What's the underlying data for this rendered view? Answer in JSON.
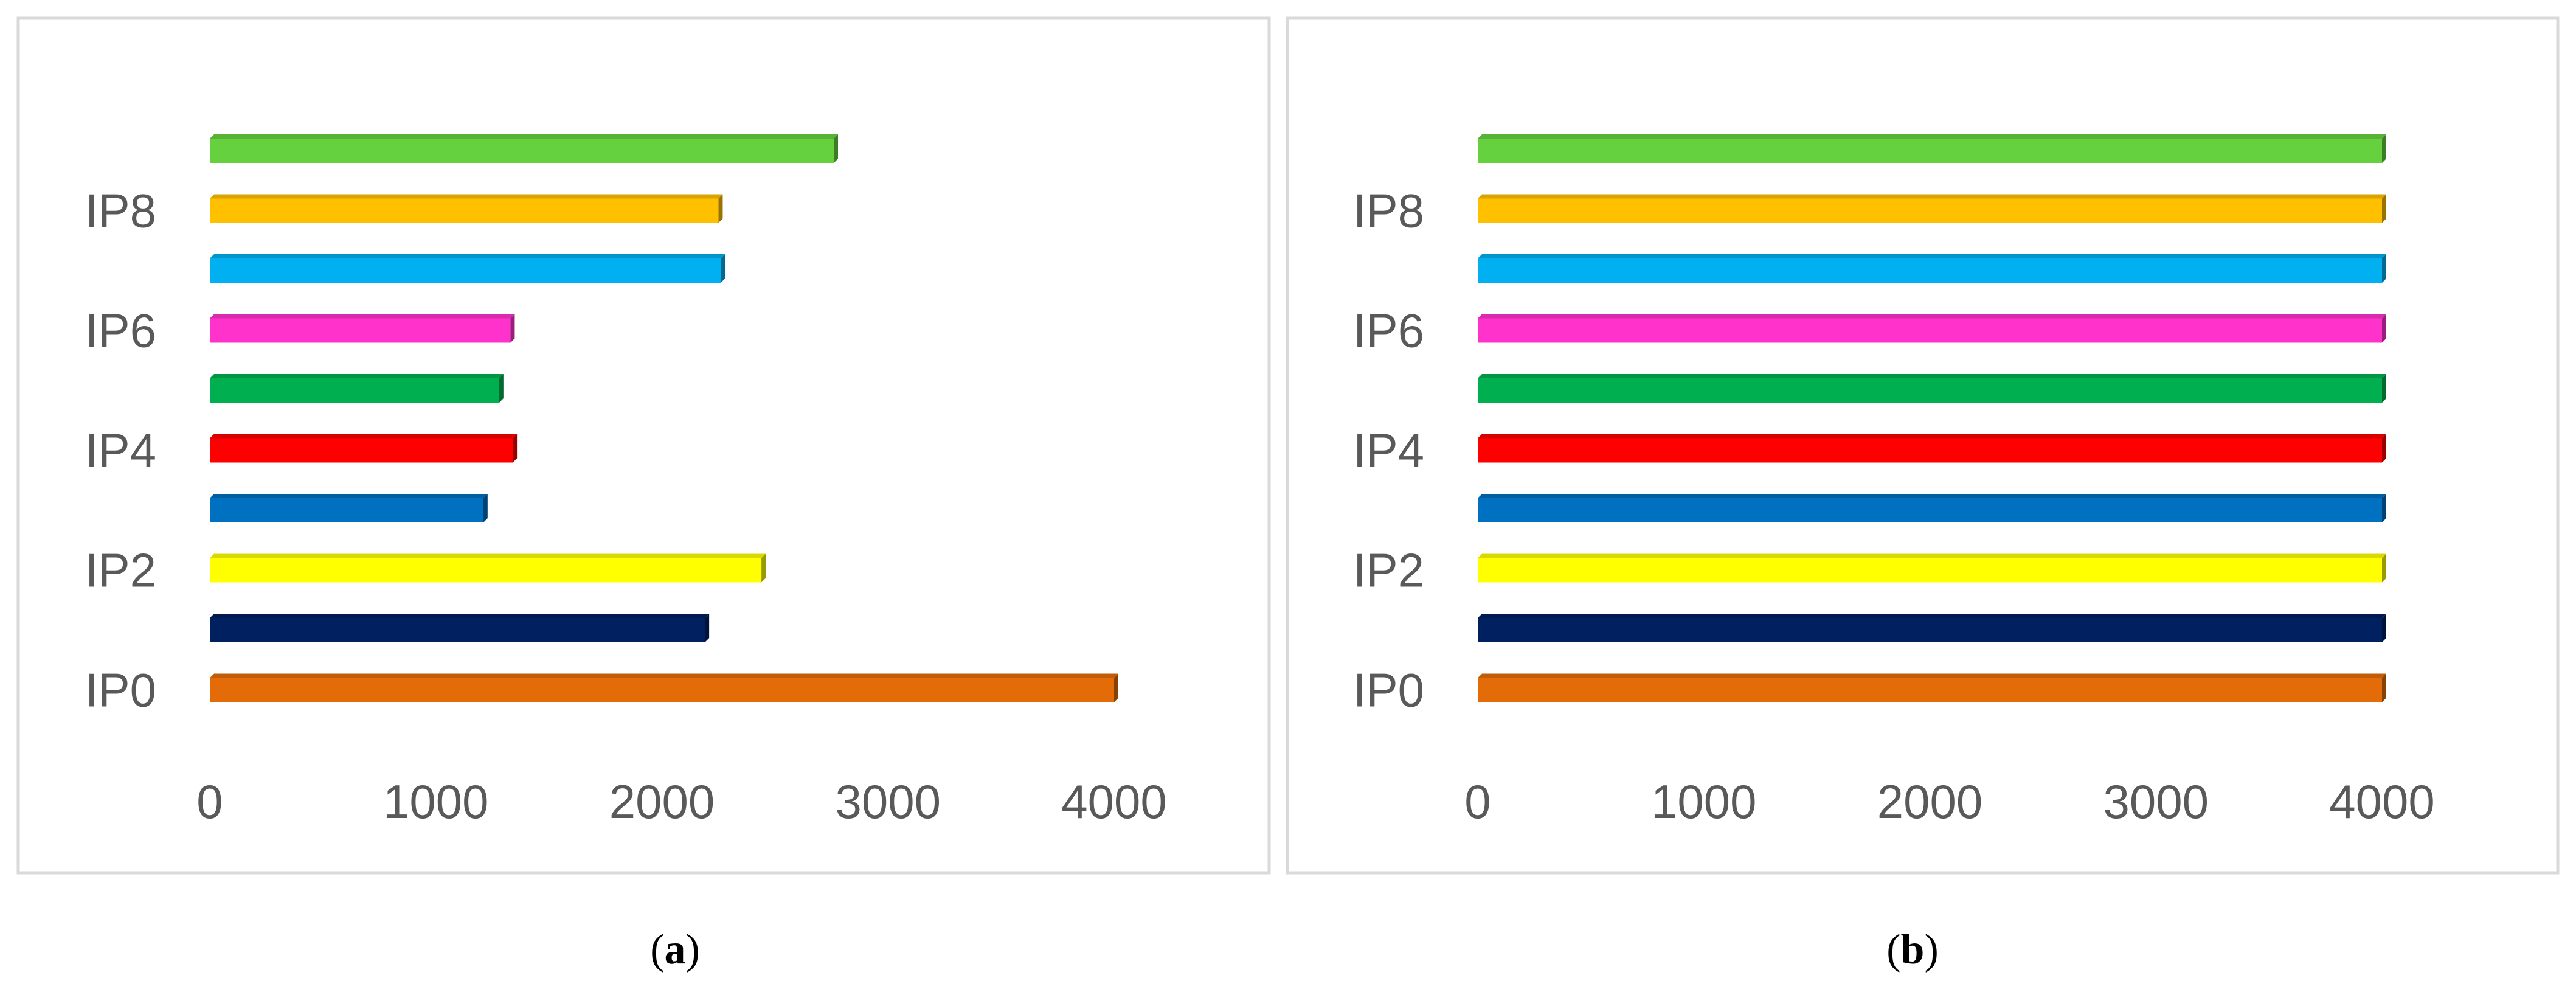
{
  "chart_data": [
    {
      "type": "bar",
      "orientation": "horizontal",
      "panel_label": "a",
      "categories": [
        "IP0",
        "",
        "IP2",
        "",
        "IP4",
        "",
        "IP6",
        "",
        "IP8",
        ""
      ],
      "values": [
        4000,
        2190,
        2440,
        1210,
        1340,
        1280,
        1330,
        2260,
        2250,
        2760
      ],
      "colors": [
        "#E36C09",
        "#002060",
        "#FFFF00",
        "#0070C0",
        "#FF0000",
        "#00B050",
        "#FF33CC",
        "#00B0F0",
        "#FFC000",
        "#66D13F"
      ],
      "xticks": [
        "0",
        "1000",
        "2000",
        "3000",
        "4000"
      ],
      "xlim": [
        0,
        4000
      ],
      "title": "",
      "xlabel": "",
      "ylabel": "",
      "grid": false
    },
    {
      "type": "bar",
      "orientation": "horizontal",
      "panel_label": "b",
      "categories": [
        "IP0",
        "",
        "IP2",
        "",
        "IP4",
        "",
        "IP6",
        "",
        "IP8",
        ""
      ],
      "values": [
        4000,
        4000,
        4000,
        4000,
        4000,
        4000,
        4000,
        4000,
        4000,
        4000
      ],
      "colors": [
        "#E36C09",
        "#002060",
        "#FFFF00",
        "#0070C0",
        "#FF0000",
        "#00B050",
        "#FF33CC",
        "#00B0F0",
        "#FFC000",
        "#66D13F"
      ],
      "xticks": [
        "0",
        "1000",
        "2000",
        "3000",
        "4000"
      ],
      "xlim": [
        0,
        4000
      ],
      "title": "",
      "xlabel": "",
      "ylabel": "",
      "grid": false
    }
  ],
  "captions": [
    "a",
    "b"
  ]
}
